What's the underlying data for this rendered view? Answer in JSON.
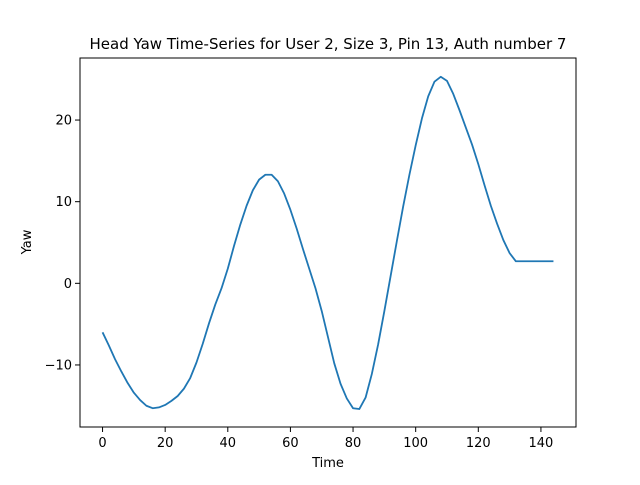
{
  "chart_data": {
    "type": "line",
    "title": "Head Yaw Time-Series for User 2, Size 3, Pin 13, Auth number 7",
    "xlabel": "Time",
    "ylabel": "Yaw",
    "xlim": [
      -7.2,
      151.2
    ],
    "ylim": [
      -17.6,
      27.6
    ],
    "xticks": [
      0,
      20,
      40,
      60,
      80,
      100,
      120,
      140
    ],
    "yticks": [
      -10,
      0,
      10,
      20
    ],
    "ytick_labels": [
      "−10",
      "0",
      "10",
      "20"
    ],
    "grid": false,
    "legend": "none",
    "series": [
      {
        "color": "#1f77b4",
        "x": [
          0,
          2,
          4,
          6,
          8,
          10,
          12,
          14,
          16,
          18,
          20,
          22,
          24,
          26,
          28,
          30,
          32,
          34,
          36,
          38,
          40,
          42,
          44,
          46,
          48,
          50,
          52,
          54,
          56,
          58,
          60,
          62,
          64,
          66,
          68,
          70,
          72,
          74,
          76,
          78,
          80,
          82,
          84,
          86,
          88,
          90,
          92,
          94,
          96,
          98,
          100,
          102,
          104,
          106,
          108,
          110,
          112,
          114,
          116,
          118,
          120,
          122,
          124,
          126,
          128,
          130,
          132,
          134,
          136,
          138,
          140,
          142,
          144
        ],
        "y": [
          -6.0,
          -7.6,
          -9.3,
          -10.8,
          -12.2,
          -13.4,
          -14.3,
          -15.0,
          -15.3,
          -15.2,
          -14.9,
          -14.4,
          -13.8,
          -12.9,
          -11.6,
          -9.7,
          -7.4,
          -4.9,
          -2.6,
          -0.6,
          1.8,
          4.6,
          7.2,
          9.5,
          11.4,
          12.7,
          13.3,
          13.3,
          12.5,
          11.0,
          9.0,
          6.7,
          4.2,
          1.8,
          -0.6,
          -3.4,
          -6.6,
          -9.8,
          -12.3,
          -14.1,
          -15.3,
          -15.4,
          -14.0,
          -11.1,
          -7.5,
          -3.4,
          0.9,
          5.2,
          9.4,
          13.3,
          16.9,
          20.2,
          22.9,
          24.7,
          25.3,
          24.8,
          23.2,
          21.2,
          19.1,
          17.0,
          14.6,
          12.0,
          9.5,
          7.3,
          5.3,
          3.7,
          2.7,
          2.7,
          2.7,
          2.7,
          2.7,
          2.7,
          2.7
        ]
      }
    ]
  }
}
